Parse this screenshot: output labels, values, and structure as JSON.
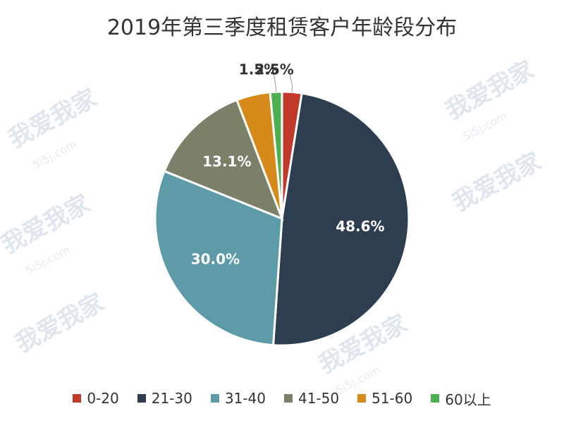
{
  "chart_data": {
    "type": "pie",
    "title": "2019年第三季度租赁客户年龄段分布",
    "categories": [
      "0-20",
      "21-30",
      "31-40",
      "41-50",
      "51-60",
      "60以上"
    ],
    "values": [
      2.5,
      48.6,
      30.0,
      13.1,
      4.3,
      1.5
    ],
    "value_labels": [
      "2.5%",
      "48.6%",
      "30.0%",
      "13.1%",
      "",
      "1.5%"
    ],
    "colors": [
      "#c0392b",
      "#2c3e50",
      "#5d9ba8",
      "#7b8068",
      "#d68a1a",
      "#4caf50"
    ],
    "legend_position": "bottom"
  },
  "watermark": {
    "text": "我爱我家",
    "subtext": "5i5j.com"
  }
}
